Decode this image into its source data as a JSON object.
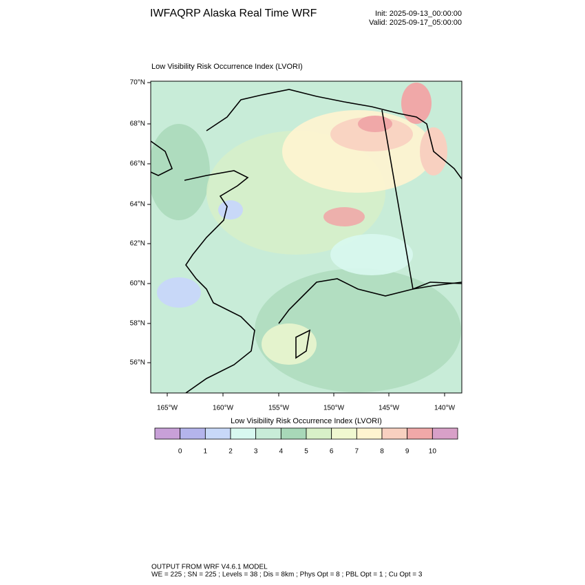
{
  "header": {
    "title": "IWFAQRP Alaska Real Time WRF",
    "init": "Init: 2025-09-13_00:00:00",
    "valid": "Valid: 2025-09-17_05:00:00"
  },
  "map": {
    "title": "Low Visibility Risk Occurrence Index   (LVORI)",
    "lat_labels": [
      "70°N",
      "68°N",
      "66°N",
      "64°N",
      "62°N",
      "60°N",
      "58°N",
      "56°N"
    ],
    "lon_labels": [
      "165°W",
      "160°W",
      "155°W",
      "150°W",
      "145°W",
      "140°W"
    ]
  },
  "colorbar": {
    "title": "Low Visibility Risk Occurrence Index  (LVORI)",
    "labels": [
      0,
      1,
      2,
      3,
      4,
      5,
      6,
      7,
      8,
      9,
      10
    ],
    "colors": [
      "#c8a0d8",
      "#b4b4ec",
      "#c8d8f8",
      "#d8f8f0",
      "#c8ecd8",
      "#a8d8b8",
      "#d8f0c8",
      "#f0f8d0",
      "#fff4d0",
      "#f8d0c0",
      "#f0a8a8",
      "#d8a0c8"
    ]
  },
  "footer": {
    "line1": "OUTPUT FROM WRF V4.6.1 MODEL",
    "line2": "WE = 225 ; SN = 225 ; Levels = 38 ; Dis = 8km ; Phys Opt = 8 ; PBL Opt = 1 ; Cu Opt = 3"
  }
}
